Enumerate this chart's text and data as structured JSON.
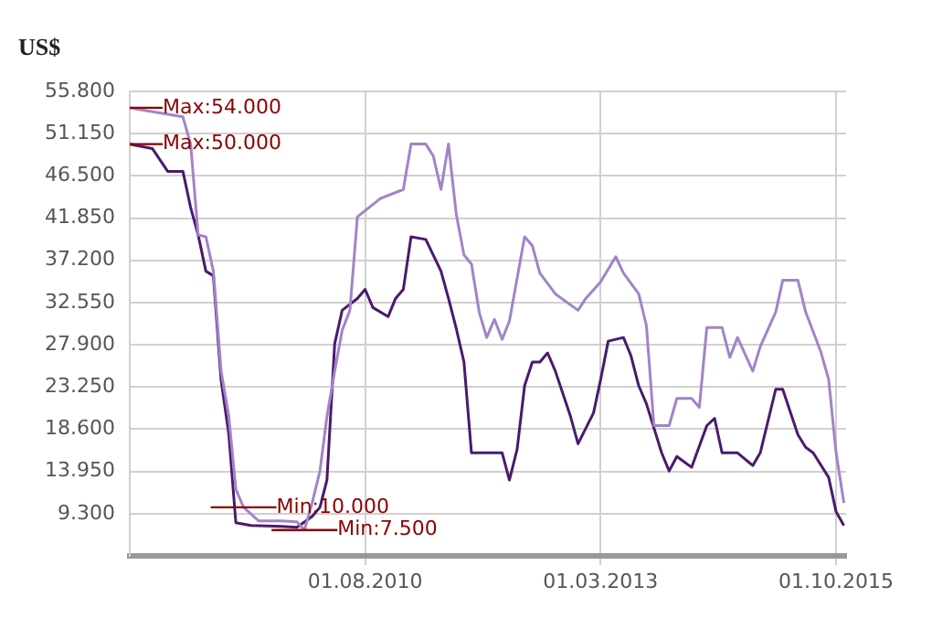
{
  "chart_data": {
    "type": "line",
    "ylabel": "US$",
    "xlim": [
      "2008-01-01",
      "2015-11-10"
    ],
    "xticks": [
      {
        "value": "2010-08-01",
        "label": "01.08.2010"
      },
      {
        "value": "2013-03-01",
        "label": "01.03.2013"
      },
      {
        "value": "2015-10-01",
        "label": "01.10.2015"
      }
    ],
    "ylim": [
      4.65,
      55.8
    ],
    "yticks": [
      {
        "value": 9.3,
        "label": "9.300"
      },
      {
        "value": 13.95,
        "label": "13.950"
      },
      {
        "value": 18.6,
        "label": "18.600"
      },
      {
        "value": 23.25,
        "label": "23.250"
      },
      {
        "value": 27.9,
        "label": "27.900"
      },
      {
        "value": 32.55,
        "label": "32.550"
      },
      {
        "value": 37.2,
        "label": "37.200"
      },
      {
        "value": 41.85,
        "label": "41.850"
      },
      {
        "value": 46.5,
        "label": "46.500"
      },
      {
        "value": 51.15,
        "label": "51.150"
      },
      {
        "value": 55.8,
        "label": "55.800"
      }
    ],
    "grid": true,
    "legend": false,
    "marker": "none",
    "line_style": "solid",
    "series": [
      {
        "color": "#a184c8",
        "x": [
          "2008-01",
          "2008-08",
          "2008-09",
          "2008-10",
          "2008-11",
          "2008-12",
          "2009-01",
          "2009-02",
          "2009-03",
          "2009-04",
          "2009-06",
          "2009-09",
          "2009-11",
          "2009-12",
          "2010-01",
          "2010-02",
          "2010-03",
          "2010-04",
          "2010-05",
          "2010-06",
          "2010-07",
          "2010-10",
          "2011-01",
          "2011-02",
          "2011-04",
          "2011-05",
          "2011-06",
          "2011-07",
          "2011-08",
          "2011-09",
          "2011-10",
          "2011-11",
          "2011-12",
          "2012-01",
          "2012-02",
          "2012-03",
          "2012-05",
          "2012-06",
          "2012-07",
          "2012-09",
          "2012-12",
          "2013-01",
          "2013-03",
          "2013-05",
          "2013-06",
          "2013-08",
          "2013-09",
          "2013-10",
          "2013-12",
          "2014-01",
          "2014-03",
          "2014-04",
          "2014-05",
          "2014-07",
          "2014-08",
          "2014-09",
          "2014-11",
          "2014-12",
          "2015-02",
          "2015-03",
          "2015-05",
          "2015-06",
          "2015-08",
          "2015-09",
          "2015-10",
          "2015-11"
        ],
        "values": [
          54,
          53,
          50,
          40,
          39.8,
          36,
          25,
          20,
          12,
          10,
          8.5,
          8.5,
          8.4,
          7.5,
          10.5,
          14,
          20,
          25,
          29.5,
          31.7,
          42,
          44,
          45,
          50,
          50,
          48.7,
          45,
          50,
          42.3,
          37.8,
          36.8,
          31.5,
          28.7,
          30.7,
          28.5,
          30.5,
          39.8,
          38.8,
          35.8,
          33.5,
          31.7,
          33,
          34.8,
          37.6,
          35.8,
          33.5,
          30,
          19,
          19,
          22,
          22,
          21,
          29.8,
          29.8,
          26.5,
          28.7,
          25,
          27.7,
          31.5,
          35,
          35,
          31.5,
          27.1,
          24.1,
          16,
          10.5
        ]
      },
      {
        "color": "#4a1a6e",
        "x": [
          "2008-01",
          "2008-04",
          "2008-06",
          "2008-08",
          "2008-09",
          "2008-10",
          "2008-11",
          "2008-12",
          "2009-01",
          "2009-02",
          "2009-03",
          "2009-05",
          "2009-09",
          "2009-11",
          "2010-01",
          "2010-02",
          "2010-03",
          "2010-04",
          "2010-05",
          "2010-07",
          "2010-08",
          "2010-09",
          "2010-11",
          "2010-12",
          "2011-01",
          "2011-02",
          "2011-04",
          "2011-06",
          "2011-07",
          "2011-08",
          "2011-09",
          "2011-10",
          "2012-02",
          "2012-03",
          "2012-04",
          "2012-05",
          "2012-06",
          "2012-07",
          "2012-08",
          "2012-09",
          "2012-11",
          "2012-12",
          "2013-02",
          "2013-03",
          "2013-04",
          "2013-06",
          "2013-07",
          "2013-08",
          "2013-09",
          "2013-11",
          "2013-12",
          "2014-01",
          "2014-03",
          "2014-05",
          "2014-06",
          "2014-07",
          "2014-09",
          "2014-11",
          "2014-12",
          "2015-02",
          "2015-03",
          "2015-05",
          "2015-06",
          "2015-07",
          "2015-09",
          "2015-10",
          "2015-11"
        ],
        "values": [
          50,
          49.5,
          47,
          47,
          43,
          40,
          36,
          35.5,
          24,
          18,
          8.3,
          8,
          7.9,
          7.8,
          9,
          10,
          13,
          28,
          31.7,
          33,
          34,
          32,
          31,
          33,
          34,
          39.8,
          39.5,
          36,
          33,
          29.7,
          26,
          16,
          16,
          13,
          16.4,
          23.4,
          26,
          26,
          27,
          25,
          20,
          17,
          20.4,
          24,
          28.3,
          28.7,
          26.7,
          23.4,
          21.4,
          16,
          14,
          15.6,
          14.4,
          19,
          19.8,
          16,
          16,
          14.6,
          16,
          23,
          23,
          18,
          16.6,
          16,
          13.3,
          9.5,
          8
        ]
      }
    ],
    "annotations": [
      {
        "text": "Max:54.000",
        "x": "2008-01",
        "y": 54
      },
      {
        "text": "Max:50.000",
        "x": "2008-01",
        "y": 50
      },
      {
        "text": "Min:10.000",
        "x": "2009-04",
        "y": 10
      },
      {
        "text": "Min:7.500",
        "x": "2009-12",
        "y": 7.5
      }
    ]
  }
}
